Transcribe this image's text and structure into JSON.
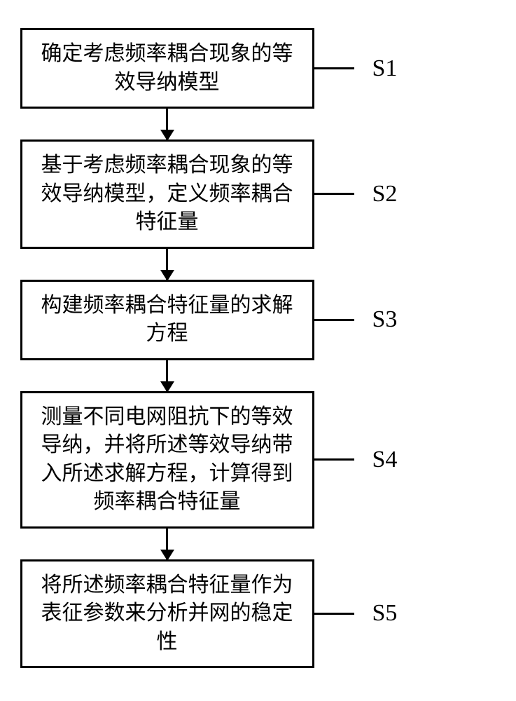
{
  "flowchart": {
    "type": "flowchart",
    "background_color": "#ffffff",
    "box_border_color": "#000000",
    "box_border_width": 3,
    "arrow_color": "#000000",
    "font_family": "SimSun",
    "box_fontsize": 30,
    "label_fontsize": 34,
    "steps": [
      {
        "id": "S1",
        "text": "确定考虑频率耦合现象的等效导纳模型"
      },
      {
        "id": "S2",
        "text": "基于考虑频率耦合现象的等效导纳模型，定义频率耦合特征量"
      },
      {
        "id": "S3",
        "text": "构建频率耦合特征量的求解方程"
      },
      {
        "id": "S4",
        "text": "测量不同电网阻抗下的等效导纳，并将所述等效导纳带入所述求解方程，计算得到频率耦合特征量"
      },
      {
        "id": "S5",
        "text": "将所述频率耦合特征量作为表征参数来分析并网的稳定性"
      }
    ]
  }
}
